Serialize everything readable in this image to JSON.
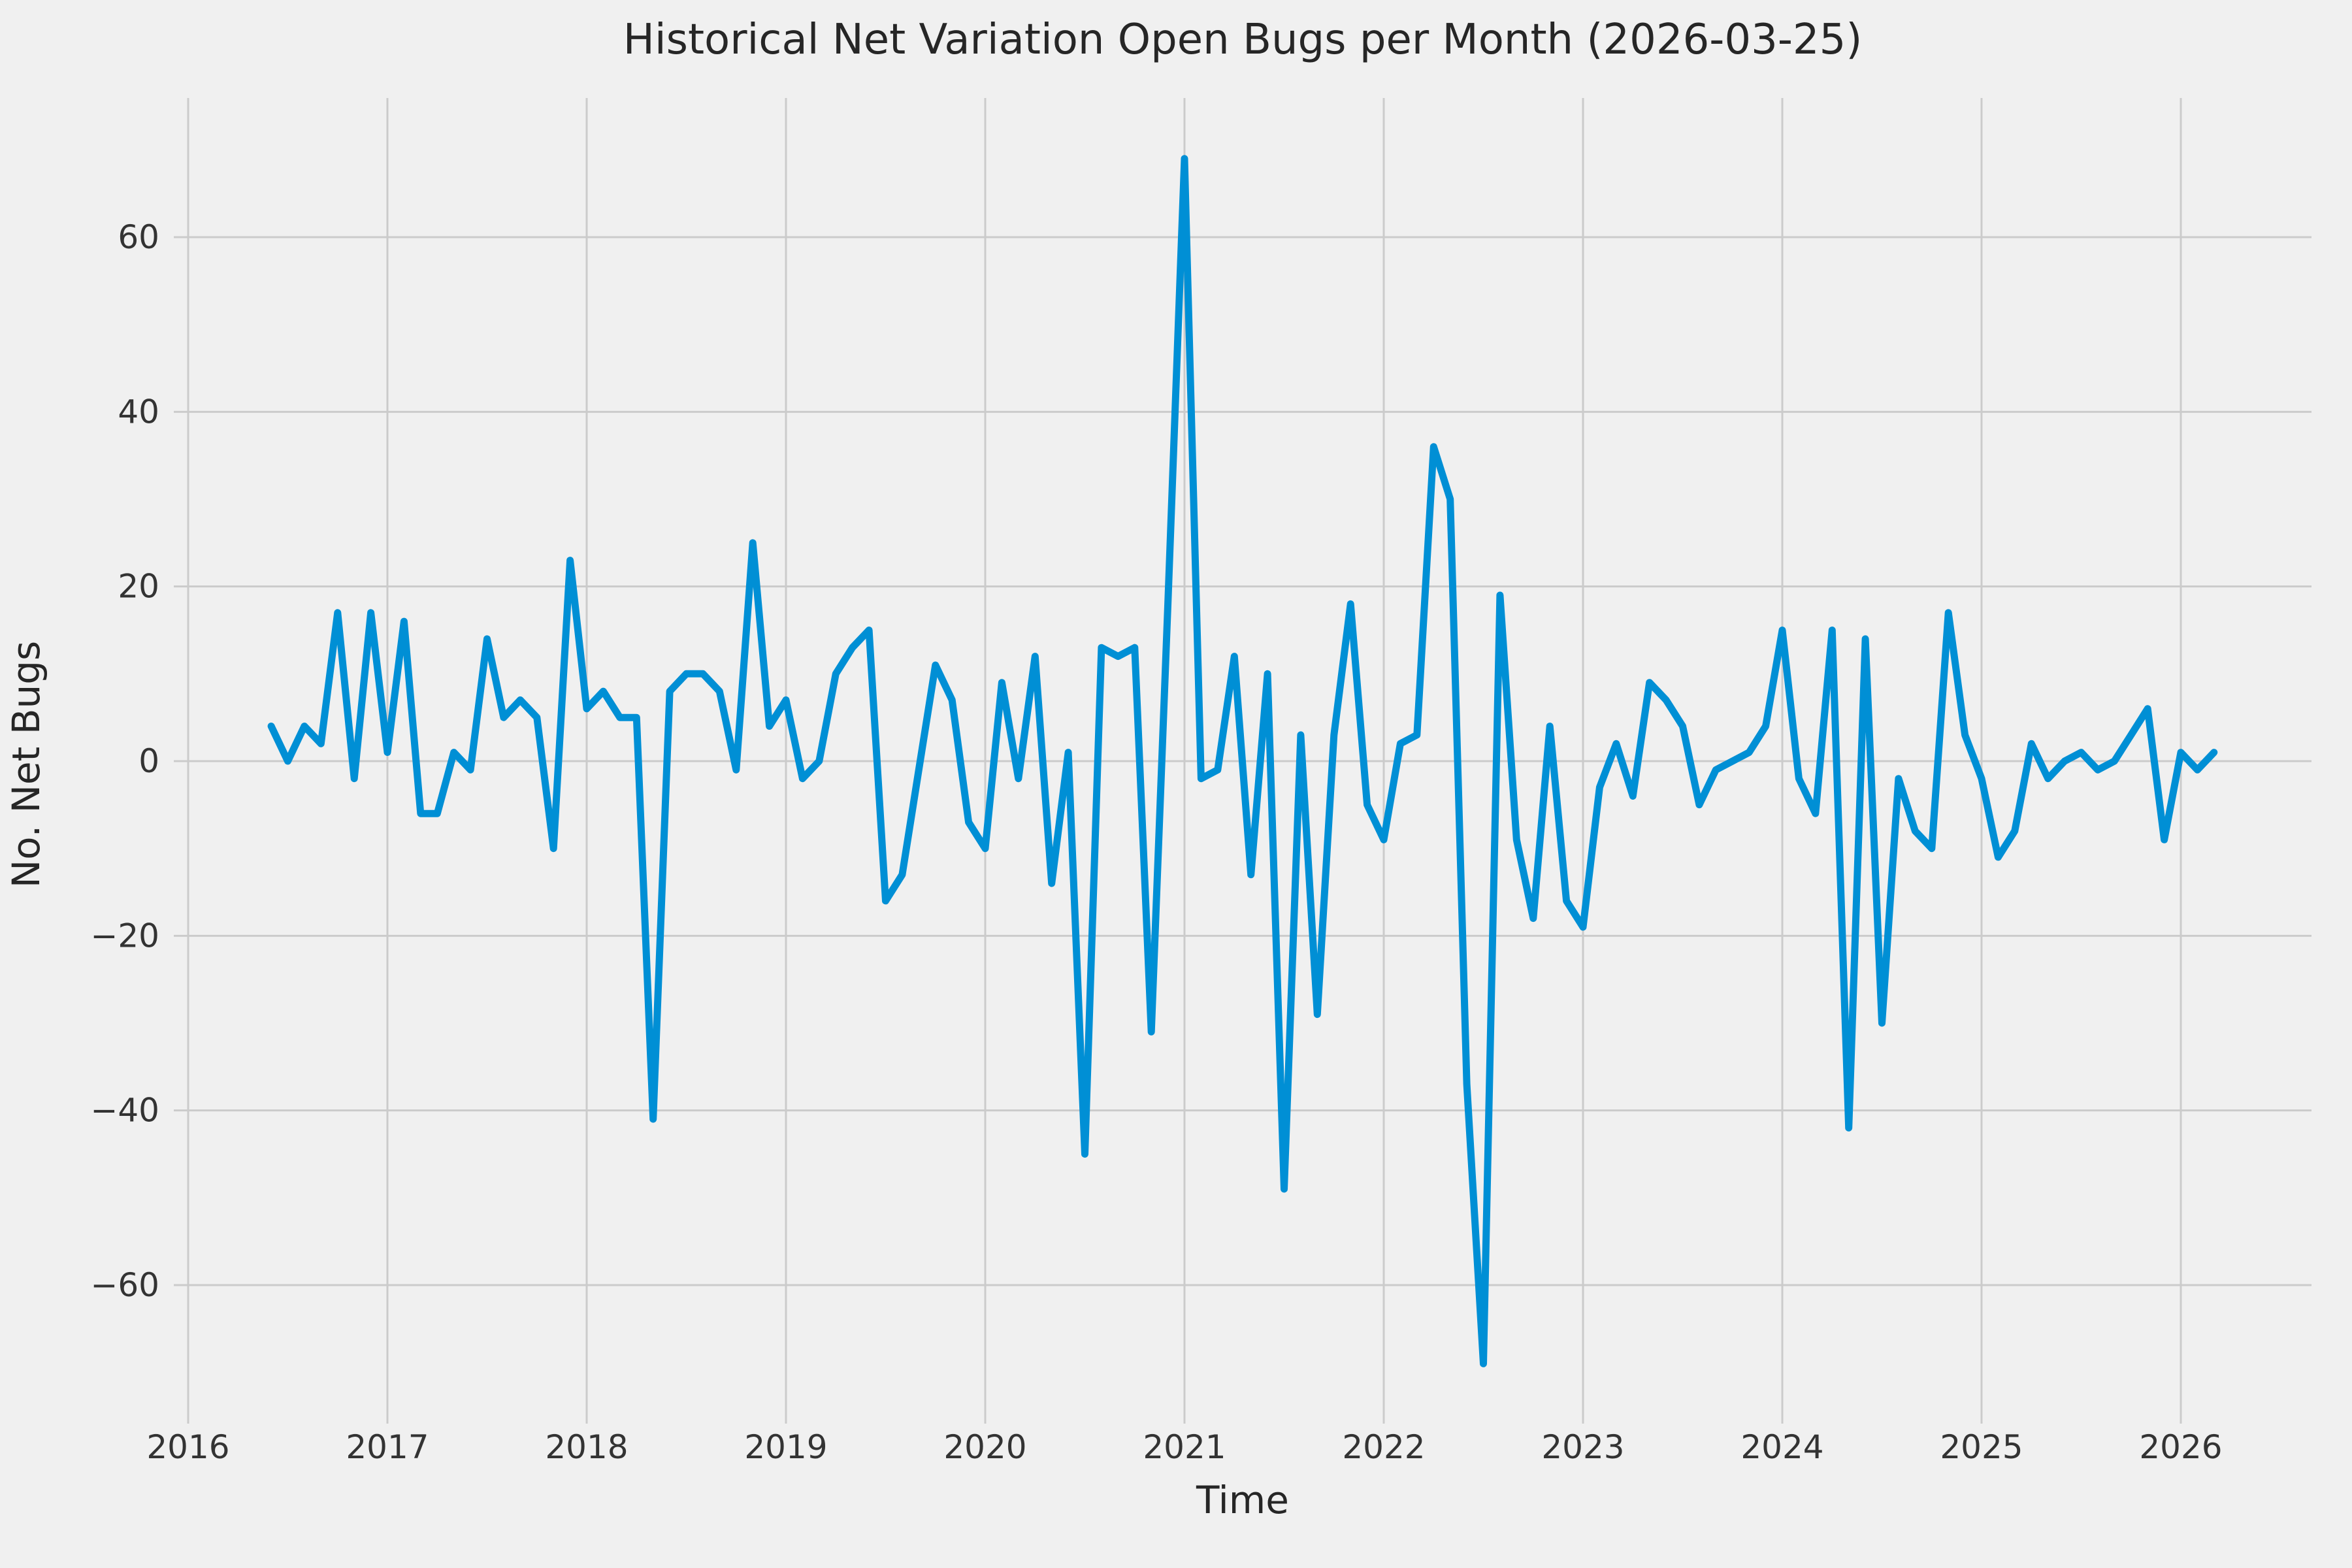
{
  "title": "Historical Net Variation Open Bugs per Month (2026-03-25)",
  "chart_data": {
    "type": "line",
    "title": "Historical Net Variation Open Bugs per Month (2026-03-25)",
    "xlabel": "Time",
    "ylabel": "No. Net Bugs",
    "legend": "none",
    "grid": "on",
    "background_color": "#f0f0f0",
    "grid_color": "#cbcbcb",
    "line_color": "#008fd5",
    "text_color": "#262626",
    "tick_color": "#333333",
    "ylim": [
      -76,
      76
    ],
    "yticks": [
      60,
      40,
      20,
      0,
      -20,
      -40,
      -60
    ],
    "xticks": [
      2016,
      2017,
      2018,
      2019,
      2020,
      2021,
      2022,
      2023,
      2024,
      2025,
      2026
    ],
    "x_start_month": "2016-06",
    "x_end_month": "2026-03",
    "months": [
      "2016-06",
      "2016-07",
      "2016-08",
      "2016-09",
      "2016-10",
      "2016-11",
      "2016-12",
      "2017-01",
      "2017-02",
      "2017-03",
      "2017-04",
      "2017-05",
      "2017-06",
      "2017-07",
      "2017-08",
      "2017-09",
      "2017-10",
      "2017-11",
      "2017-12",
      "2018-01",
      "2018-02",
      "2018-03",
      "2018-04",
      "2018-05",
      "2018-06",
      "2018-07",
      "2018-08",
      "2018-09",
      "2018-10",
      "2018-11",
      "2018-12",
      "2019-01",
      "2019-02",
      "2019-03",
      "2019-04",
      "2019-05",
      "2019-06",
      "2019-07",
      "2019-08",
      "2019-09",
      "2019-10",
      "2019-11",
      "2019-12",
      "2020-01",
      "2020-02",
      "2020-03",
      "2020-04",
      "2020-05",
      "2020-06",
      "2020-07",
      "2020-08",
      "2020-09",
      "2020-10",
      "2020-11",
      "2020-12",
      "2021-01",
      "2021-02",
      "2021-03",
      "2021-04",
      "2021-05",
      "2021-06",
      "2021-07",
      "2021-08",
      "2021-09",
      "2021-10",
      "2021-11",
      "2021-12",
      "2022-01",
      "2022-02",
      "2022-03",
      "2022-04",
      "2022-05",
      "2022-06",
      "2022-07",
      "2022-08",
      "2022-09",
      "2022-10",
      "2022-11",
      "2022-12",
      "2023-01",
      "2023-02",
      "2023-03",
      "2023-04",
      "2023-05",
      "2023-06",
      "2023-07",
      "2023-08",
      "2023-09",
      "2023-10",
      "2023-11",
      "2023-12",
      "2024-01",
      "2024-02",
      "2024-03",
      "2024-04",
      "2024-05",
      "2024-06",
      "2024-07",
      "2024-08",
      "2024-09",
      "2024-10",
      "2024-11",
      "2024-12",
      "2025-01",
      "2025-02",
      "2025-03",
      "2025-04",
      "2025-05",
      "2025-06",
      "2025-07",
      "2025-08",
      "2025-09",
      "2025-10",
      "2025-11",
      "2025-12",
      "2026-01",
      "2026-02",
      "2026-03"
    ],
    "values": [
      4,
      0,
      4,
      2,
      17,
      -2,
      17,
      1,
      16,
      -6,
      -6,
      1,
      -1,
      14,
      5,
      7,
      5,
      -10,
      23,
      6,
      8,
      5,
      5,
      -41,
      8,
      10,
      10,
      8,
      -1,
      25,
      4,
      7,
      -2,
      0,
      10,
      13,
      15,
      -16,
      -13,
      -1,
      11,
      7,
      -7,
      -10,
      9,
      -2,
      12,
      -14,
      1,
      -45,
      13,
      12,
      13,
      -31,
      18,
      69,
      -2,
      -1,
      12,
      -13,
      10,
      -49,
      3,
      -29,
      3,
      18,
      -5,
      -9,
      2,
      3,
      36,
      30,
      -37,
      -69,
      19,
      -9,
      -18,
      4,
      -16,
      -19,
      -3,
      2,
      -4,
      9,
      7,
      4,
      -5,
      -1,
      0,
      1,
      4,
      15,
      -2,
      -6,
      15,
      -42,
      14,
      -30,
      -2,
      -8,
      -10,
      17,
      3,
      -2,
      -11,
      -8,
      2,
      -2,
      0,
      1,
      -1,
      0,
      3,
      6,
      -9,
      1,
      -1,
      1
    ]
  }
}
